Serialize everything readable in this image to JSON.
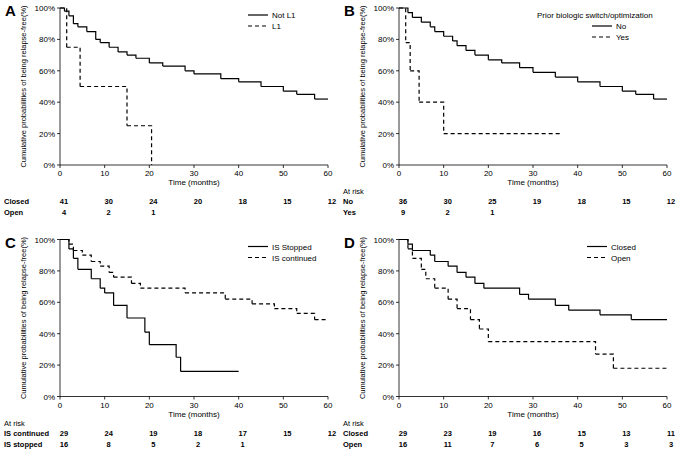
{
  "chart_data": [
    {
      "panel": "A",
      "type": "step",
      "xlabel": "Time (months)",
      "ylabel": "Cumulative probabilities of being relapse-free(%)",
      "xlim": [
        0,
        60
      ],
      "ylim": [
        0,
        100
      ],
      "xticks": [
        0,
        10,
        20,
        30,
        40,
        50,
        60
      ],
      "yticks": [
        {
          "value": 0,
          "label": "0%"
        },
        {
          "value": 20,
          "label": "20%"
        },
        {
          "value": 40,
          "label": "40%"
        },
        {
          "value": 60,
          "label": "60%"
        },
        {
          "value": 80,
          "label": "80%"
        },
        {
          "value": 100,
          "label": "100%"
        }
      ],
      "legend": "upper right",
      "series": [
        {
          "name": "Not L1",
          "color": "#000000",
          "line_style": "solid",
          "x": [
            0,
            1,
            2,
            3,
            4,
            6,
            8,
            9,
            11,
            13,
            15,
            17,
            20,
            23,
            28,
            30,
            36,
            40,
            45,
            50,
            53,
            57,
            60
          ],
          "values": [
            100,
            98,
            95,
            90,
            88,
            85,
            80,
            78,
            75,
            72,
            70,
            68,
            65,
            63,
            60,
            58,
            55,
            53,
            50,
            47,
            45,
            42,
            42
          ]
        },
        {
          "name": "L1",
          "color": "#000000",
          "line_style": "dashed",
          "x": [
            0,
            1.5,
            4.5,
            15,
            20.5
          ],
          "values": [
            100,
            75,
            50,
            25,
            0
          ]
        }
      ],
      "at_risk": {
        "rows": [
          {
            "label": "Closed",
            "times": [
              0,
              10,
              20,
              30,
              40,
              50,
              60
            ],
            "counts": [
              41,
              30,
              24,
              20,
              18,
              15,
              12
            ]
          },
          {
            "label": "Open",
            "times": [
              0,
              10,
              20
            ],
            "counts": [
              4,
              2,
              1
            ]
          }
        ]
      }
    },
    {
      "panel": "B",
      "type": "step",
      "xlabel": "Time (months)",
      "ylabel": "Cumulative probabilities of being relapse-free(%)",
      "xlim": [
        0,
        60
      ],
      "ylim": [
        0,
        100
      ],
      "xticks": [
        0,
        10,
        20,
        30,
        40,
        50,
        60
      ],
      "yticks": [
        {
          "value": 0,
          "label": "0%"
        },
        {
          "value": 20,
          "label": "20%"
        },
        {
          "value": 40,
          "label": "40%"
        },
        {
          "value": 60,
          "label": "60%"
        },
        {
          "value": 80,
          "label": "80%"
        },
        {
          "value": 100,
          "label": "100%"
        }
      ],
      "legend": "upper right",
      "legend_title": "Prior biologic switch/optimization",
      "series": [
        {
          "name": "No",
          "color": "#000000",
          "line_style": "solid",
          "x": [
            0,
            2,
            3,
            5,
            7,
            8,
            10,
            12,
            13,
            15,
            17,
            20,
            23,
            27,
            30,
            35,
            40,
            45,
            50,
            53,
            57,
            60
          ],
          "values": [
            100,
            97,
            94,
            91,
            88,
            85,
            82,
            79,
            76,
            73,
            70,
            67,
            65,
            62,
            59,
            56,
            53,
            50,
            47,
            45,
            42,
            42
          ]
        },
        {
          "name": "Yes",
          "color": "#000000",
          "line_style": "dashed",
          "x": [
            0,
            1.5,
            2.5,
            4.5,
            10,
            36
          ],
          "values": [
            100,
            78,
            60,
            40,
            20,
            20
          ]
        }
      ],
      "at_risk": {
        "title": "At risk",
        "rows": [
          {
            "label": "No",
            "times": [
              0,
              10,
              20,
              30,
              40,
              50,
              60
            ],
            "counts": [
              36,
              30,
              25,
              19,
              18,
              15,
              12
            ]
          },
          {
            "label": "Yes",
            "times": [
              0,
              10,
              20
            ],
            "counts": [
              9,
              2,
              1
            ]
          }
        ]
      }
    },
    {
      "panel": "C",
      "type": "step",
      "xlabel": "Time (months)",
      "ylabel": "Cumulative probabilities of being relapse-free(%)",
      "xlim": [
        0,
        60
      ],
      "ylim": [
        0,
        100
      ],
      "xticks": [
        0,
        10,
        20,
        30,
        40,
        50,
        60
      ],
      "yticks": [
        {
          "value": 0,
          "label": "0%"
        },
        {
          "value": 20,
          "label": "20%"
        },
        {
          "value": 40,
          "label": "40%"
        },
        {
          "value": 60,
          "label": "60%"
        },
        {
          "value": 80,
          "label": "80%"
        },
        {
          "value": 100,
          "label": "100%"
        }
      ],
      "legend": "upper right",
      "series": [
        {
          "name": "IS Stopped",
          "color": "#000000",
          "line_style": "solid",
          "x": [
            0,
            2,
            3,
            4,
            7,
            9,
            10,
            12,
            15,
            19,
            20,
            26,
            27,
            40
          ],
          "values": [
            100,
            94,
            88,
            81,
            75,
            69,
            66,
            58,
            50,
            41,
            33,
            25,
            16,
            16
          ]
        },
        {
          "name": "IS continued",
          "color": "#000000",
          "line_style": "dashed",
          "x": [
            0,
            2,
            3,
            5,
            7,
            9,
            11,
            12,
            16,
            18,
            28,
            37,
            43,
            48,
            53,
            57,
            60
          ],
          "values": [
            100,
            97,
            93,
            90,
            86,
            83,
            79,
            76,
            72,
            69,
            66,
            62,
            59,
            56,
            53,
            49,
            49
          ]
        }
      ],
      "at_risk": {
        "title": "At risk",
        "rows": [
          {
            "label": "IS continued",
            "times": [
              0,
              10,
              20,
              30,
              40,
              50,
              60
            ],
            "counts": [
              29,
              24,
              19,
              18,
              17,
              15,
              12
            ]
          },
          {
            "label": "IS stopped",
            "times": [
              0,
              10,
              20,
              30,
              40
            ],
            "counts": [
              16,
              8,
              5,
              2,
              1
            ]
          }
        ]
      }
    },
    {
      "panel": "D",
      "type": "step",
      "xlabel": "Time (months)",
      "ylabel": "Cumulative probabilities of being relapse-free(%)",
      "xlim": [
        0,
        60
      ],
      "ylim": [
        0,
        100
      ],
      "xticks": [
        0,
        10,
        20,
        30,
        40,
        50,
        60
      ],
      "yticks": [
        {
          "value": 0,
          "label": "0%"
        },
        {
          "value": 20,
          "label": "20%"
        },
        {
          "value": 40,
          "label": "40%"
        },
        {
          "value": 60,
          "label": "60%"
        },
        {
          "value": 80,
          "label": "80%"
        },
        {
          "value": 100,
          "label": "100%"
        }
      ],
      "legend": "upper right",
      "series": [
        {
          "name": "Closed",
          "color": "#000000",
          "line_style": "solid",
          "x": [
            0,
            2,
            3,
            7,
            8,
            11,
            13,
            15,
            17,
            19,
            27,
            29,
            35,
            38,
            45,
            52,
            60
          ],
          "values": [
            100,
            97,
            93,
            90,
            86,
            83,
            79,
            76,
            72,
            69,
            65,
            62,
            58,
            55,
            52,
            49,
            49
          ]
        },
        {
          "name": "Open",
          "color": "#000000",
          "line_style": "dashed",
          "x": [
            0,
            2,
            3,
            5,
            6,
            8,
            11,
            13,
            16,
            18,
            20,
            44,
            48,
            60
          ],
          "values": [
            100,
            94,
            88,
            81,
            75,
            69,
            62,
            56,
            49,
            43,
            35,
            27,
            18,
            18
          ]
        }
      ],
      "at_risk": {
        "title": "At risk",
        "rows": [
          {
            "label": "Closed",
            "times": [
              0,
              10,
              20,
              30,
              40,
              50,
              60
            ],
            "counts": [
              29,
              23,
              19,
              16,
              15,
              13,
              11
            ]
          },
          {
            "label": "Open",
            "times": [
              0,
              10,
              20,
              30,
              40,
              50,
              60
            ],
            "counts": [
              16,
              11,
              7,
              6,
              5,
              3,
              3
            ]
          }
        ]
      }
    }
  ]
}
